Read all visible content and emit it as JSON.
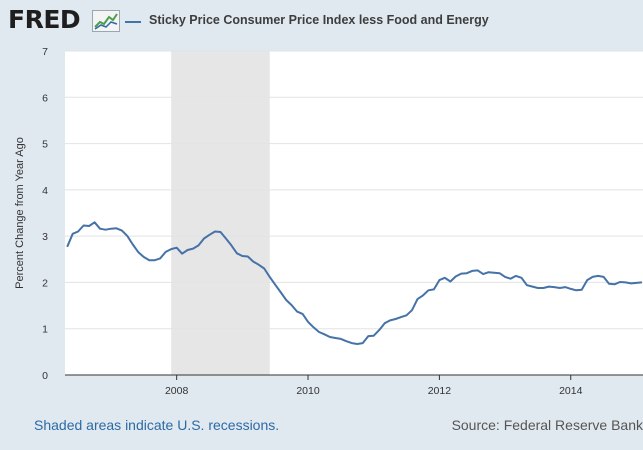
{
  "header": {
    "logo_text": "FRED",
    "logo_icon": "fred-chart-icon",
    "legend_label": "Sticky Price Consumer Price Index less Food and Energy"
  },
  "footer": {
    "recession_note": "Shaded areas indicate U.S. recessions.",
    "source": "Source: Federal Reserve Bank"
  },
  "colors": {
    "background": "#e1e9f0",
    "plot_background": "#ffffff",
    "series": "#4572a7",
    "recession_shade": "#e6e6e6",
    "gridline": "#e3e3e3"
  },
  "chart_data": {
    "type": "line",
    "title": "",
    "xlabel": "",
    "ylabel": "Percent Change from Year Ago",
    "xlim": [
      2006.3,
      2015.1
    ],
    "ylim": [
      0,
      7
    ],
    "yticks": [
      0,
      1,
      2,
      3,
      4,
      5,
      6,
      7
    ],
    "xticks": [
      {
        "value": 2008,
        "label": "2008"
      },
      {
        "value": 2010,
        "label": "2010"
      },
      {
        "value": 2012,
        "label": "2012"
      },
      {
        "value": 2014,
        "label": "2014"
      }
    ],
    "grid": "horizontal",
    "legend_position": "top",
    "recessions": [
      {
        "start": "2007-12",
        "end": "2009-06",
        "start_value": 2007.917,
        "end_value": 2009.417
      }
    ],
    "series": [
      {
        "name": "Sticky Price Consumer Price Index less Food and Energy",
        "points": [
          [
            2006.333,
            2.77
          ],
          [
            2006.417,
            3.05
          ],
          [
            2006.5,
            3.1
          ],
          [
            2006.583,
            3.23
          ],
          [
            2006.667,
            3.22
          ],
          [
            2006.75,
            3.3
          ],
          [
            2006.833,
            3.16
          ],
          [
            2006.917,
            3.14
          ],
          [
            2007.0,
            3.16
          ],
          [
            2007.083,
            3.17
          ],
          [
            2007.167,
            3.12
          ],
          [
            2007.25,
            3.0
          ],
          [
            2007.333,
            2.82
          ],
          [
            2007.417,
            2.65
          ],
          [
            2007.5,
            2.55
          ],
          [
            2007.583,
            2.48
          ],
          [
            2007.667,
            2.48
          ],
          [
            2007.75,
            2.52
          ],
          [
            2007.833,
            2.66
          ],
          [
            2007.917,
            2.72
          ],
          [
            2008.0,
            2.75
          ],
          [
            2008.083,
            2.62
          ],
          [
            2008.167,
            2.7
          ],
          [
            2008.25,
            2.73
          ],
          [
            2008.333,
            2.8
          ],
          [
            2008.417,
            2.95
          ],
          [
            2008.5,
            3.03
          ],
          [
            2008.583,
            3.1
          ],
          [
            2008.667,
            3.09
          ],
          [
            2008.75,
            2.95
          ],
          [
            2008.833,
            2.8
          ],
          [
            2008.917,
            2.63
          ],
          [
            2009.0,
            2.57
          ],
          [
            2009.083,
            2.56
          ],
          [
            2009.167,
            2.45
          ],
          [
            2009.25,
            2.38
          ],
          [
            2009.333,
            2.3
          ],
          [
            2009.417,
            2.12
          ],
          [
            2009.5,
            1.95
          ],
          [
            2009.583,
            1.79
          ],
          [
            2009.667,
            1.62
          ],
          [
            2009.75,
            1.51
          ],
          [
            2009.833,
            1.37
          ],
          [
            2009.917,
            1.32
          ],
          [
            2010.0,
            1.15
          ],
          [
            2010.083,
            1.03
          ],
          [
            2010.167,
            0.93
          ],
          [
            2010.25,
            0.88
          ],
          [
            2010.333,
            0.82
          ],
          [
            2010.417,
            0.8
          ],
          [
            2010.5,
            0.78
          ],
          [
            2010.583,
            0.73
          ],
          [
            2010.667,
            0.69
          ],
          [
            2010.75,
            0.67
          ],
          [
            2010.833,
            0.69
          ],
          [
            2010.917,
            0.84
          ],
          [
            2011.0,
            0.85
          ],
          [
            2011.083,
            0.97
          ],
          [
            2011.167,
            1.12
          ],
          [
            2011.25,
            1.18
          ],
          [
            2011.333,
            1.21
          ],
          [
            2011.417,
            1.25
          ],
          [
            2011.5,
            1.29
          ],
          [
            2011.583,
            1.4
          ],
          [
            2011.667,
            1.64
          ],
          [
            2011.75,
            1.72
          ],
          [
            2011.833,
            1.83
          ],
          [
            2011.917,
            1.85
          ],
          [
            2012.0,
            2.05
          ],
          [
            2012.083,
            2.1
          ],
          [
            2012.167,
            2.02
          ],
          [
            2012.25,
            2.13
          ],
          [
            2012.333,
            2.19
          ],
          [
            2012.417,
            2.2
          ],
          [
            2012.5,
            2.25
          ],
          [
            2012.583,
            2.26
          ],
          [
            2012.667,
            2.18
          ],
          [
            2012.75,
            2.22
          ],
          [
            2012.833,
            2.21
          ],
          [
            2012.917,
            2.2
          ],
          [
            2013.0,
            2.12
          ],
          [
            2013.083,
            2.08
          ],
          [
            2013.167,
            2.14
          ],
          [
            2013.25,
            2.1
          ],
          [
            2013.333,
            1.94
          ],
          [
            2013.417,
            1.91
          ],
          [
            2013.5,
            1.88
          ],
          [
            2013.583,
            1.88
          ],
          [
            2013.667,
            1.91
          ],
          [
            2013.75,
            1.9
          ],
          [
            2013.833,
            1.88
          ],
          [
            2013.917,
            1.9
          ],
          [
            2014.0,
            1.86
          ],
          [
            2014.083,
            1.83
          ],
          [
            2014.167,
            1.84
          ],
          [
            2014.25,
            2.05
          ],
          [
            2014.333,
            2.12
          ],
          [
            2014.417,
            2.14
          ],
          [
            2014.5,
            2.12
          ],
          [
            2014.583,
            1.97
          ],
          [
            2014.667,
            1.96
          ],
          [
            2014.75,
            2.01
          ],
          [
            2014.833,
            2.0
          ],
          [
            2014.917,
            1.98
          ],
          [
            2015.0,
            1.99
          ],
          [
            2015.083,
            2.0
          ]
        ]
      }
    ]
  }
}
